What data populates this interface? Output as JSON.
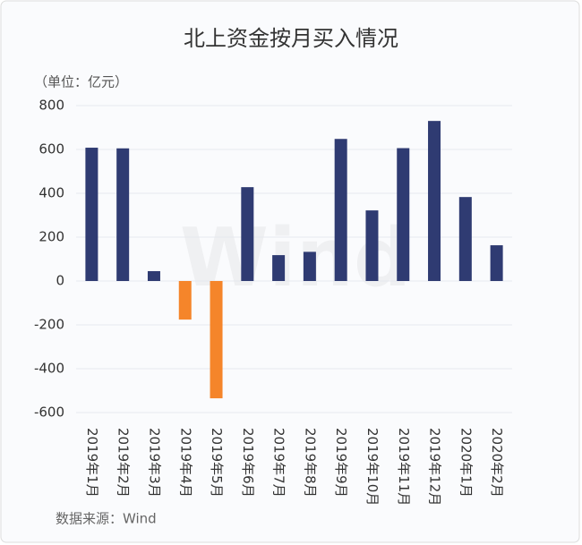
{
  "chart_data": {
    "type": "bar",
    "title": "北上资金按月买入情况",
    "unit_label": "（单位：亿元）",
    "source": "数据来源：Wind",
    "watermark": "Wind",
    "categories": [
      "2019年1月",
      "2019年2月",
      "2019年3月",
      "2019年4月",
      "2019年5月",
      "2019年6月",
      "2019年7月",
      "2019年8月",
      "2019年9月",
      "2019年10月",
      "2019年11月",
      "2019年12月",
      "2020年1月",
      "2020年2月"
    ],
    "values": [
      608,
      605,
      45,
      -176,
      -535,
      428,
      118,
      133,
      648,
      322,
      606,
      730,
      383,
      163
    ],
    "color": "#2f3b72",
    "negative_color": "#f5852a",
    "ylim": [
      -600,
      800
    ],
    "yticks": [
      -600,
      -400,
      -200,
      0,
      200,
      400,
      600,
      800
    ],
    "grid": true
  }
}
